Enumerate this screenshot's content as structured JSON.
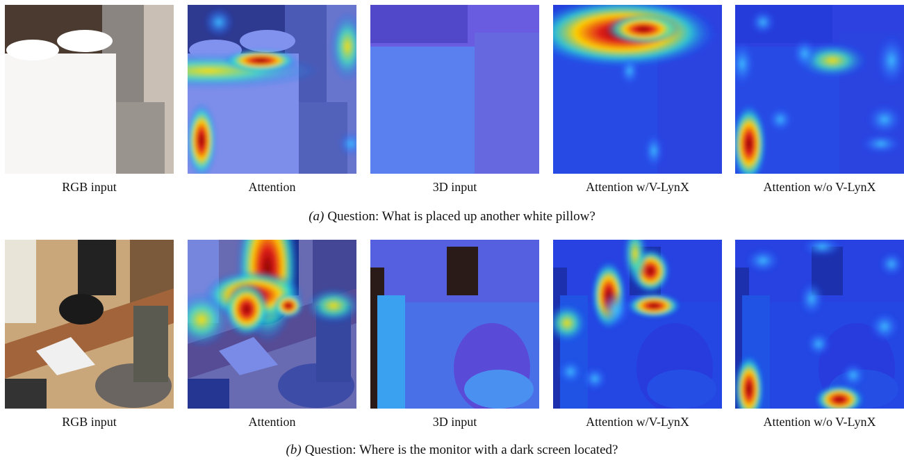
{
  "rows": [
    {
      "panels": [
        "RGB input",
        "Attention",
        "3D input",
        "Attention w/V-LynX",
        "Attention w/o V-LynX"
      ],
      "caption": {
        "label": "(a)",
        "text": "Question: What is placed up another white pillow?"
      }
    },
    {
      "panels": [
        "RGB input",
        "Attention",
        "3D input",
        "Attention w/V-LynX",
        "Attention w/o V-LynX"
      ],
      "caption": {
        "label": "(b)",
        "text": "Question: Where is the monitor with a dark screen located?"
      }
    }
  ]
}
